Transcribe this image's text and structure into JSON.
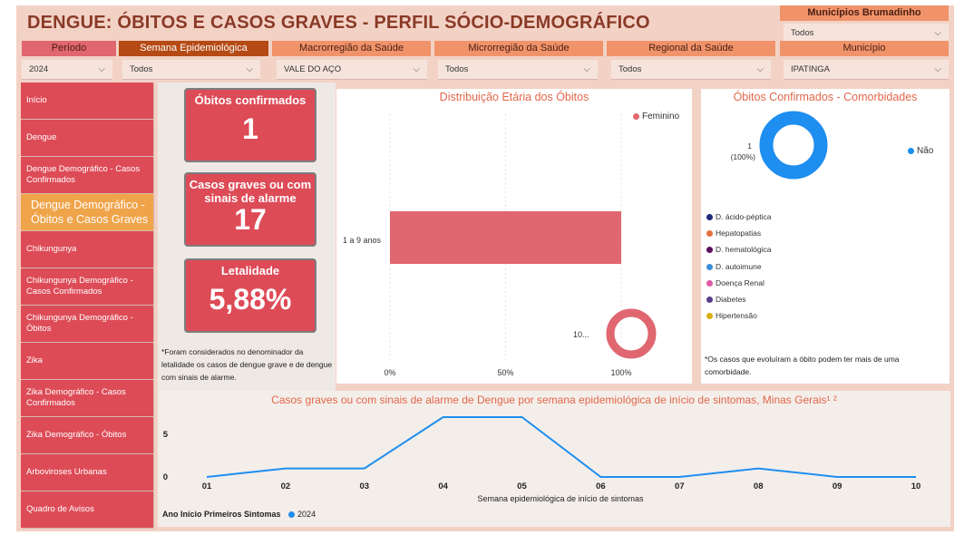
{
  "header": {
    "title": "DENGUE: ÓBITOS E CASOS GRAVES - PERFIL SÓCIO-DEMOGRÁFICO"
  },
  "filters": {
    "municipios_brumadinho": {
      "label": "Municípios Brumadinho",
      "value": "Todos"
    },
    "periodo": {
      "label": "Período",
      "value": "2024"
    },
    "semana": {
      "label": "Semana Epidemiológica",
      "value": "Todos"
    },
    "macro": {
      "label": "Macrorregião da Saúde",
      "value": "VALE DO AÇO"
    },
    "micro": {
      "label": "Microrregião da Saúde",
      "value": "Todos"
    },
    "regional": {
      "label": "Regional da Saúde",
      "value": "Todos"
    },
    "municipio": {
      "label": "Município",
      "value": "IPATINGA"
    }
  },
  "sidebar": {
    "items": [
      {
        "label": "Início"
      },
      {
        "label": "Dengue"
      },
      {
        "label": "Dengue Demográfico - Casos Confirmados"
      },
      {
        "label": "Dengue Demográfico - Óbitos e Casos Graves",
        "active": true
      },
      {
        "label": "Chikungunya"
      },
      {
        "label": "Chikungunya Demográfico - Casos Confirmados"
      },
      {
        "label": "Chikungunya Demográfico - Óbitos"
      },
      {
        "label": "Zika"
      },
      {
        "label": "Zika Demográfico - Casos Confirmados"
      },
      {
        "label": "Zika Demográfico - Óbitos"
      },
      {
        "label": "Arboviroses Urbanas"
      },
      {
        "label": "Quadro de Avisos"
      }
    ]
  },
  "kpis": {
    "obitos": {
      "label": "Óbitos confirmados",
      "value": "1"
    },
    "graves": {
      "label": "Casos graves ou com sinais de alarme",
      "value": "17"
    },
    "letalidade": {
      "label": "Letalidade",
      "value": "5,88%"
    },
    "note": "*Foram considerados no denominador da letalidade os casos de dengue grave e de dengue com sinais de alarme."
  },
  "age_chart": {
    "title": "Distribuição Etária dos Óbitos",
    "legend": "Feminino",
    "category": "1 a 9 anos",
    "x_ticks": [
      "0%",
      "50%",
      "100%"
    ],
    "donut_label": "10..."
  },
  "comorb": {
    "title": "Óbitos Confirmados - Comorbidades",
    "donut_label": "1",
    "donut_pct": "(100%)",
    "legend_nao": "Não",
    "items": [
      {
        "label": "D. ácido-péptica",
        "color": "#1f2a7a"
      },
      {
        "label": "Hepatopatias",
        "color": "#e2703a"
      },
      {
        "label": "D. hematológica",
        "color": "#5a1160"
      },
      {
        "label": "D. autoimune",
        "color": "#3a8ed8"
      },
      {
        "label": "Doença Renal",
        "color": "#e05aa8"
      },
      {
        "label": "Diabetes",
        "color": "#5a3a8a"
      },
      {
        "label": "Hipertensão",
        "color": "#d8b010"
      }
    ],
    "note": "*Os casos que evoluíram a óbito podem ter mais de uma comorbidade."
  },
  "weekly": {
    "title": "Casos graves ou com sinais de alarme de Dengue por semana epidemiológica de início de sintomas, Minas Gerais¹ ²",
    "xlabel": "Semana epidemiológica de início de sintomas",
    "y_ticks": [
      "0",
      "5"
    ],
    "legend_title": "Ano Início Primeiros Sintomas",
    "legend_series": "2024"
  },
  "chart_data": [
    {
      "type": "bar",
      "title": "Distribuição Etária dos Óbitos",
      "categories": [
        "1 a 9 anos"
      ],
      "series": [
        {
          "name": "Feminino",
          "values": [
            100
          ]
        }
      ],
      "xlim": [
        0,
        100
      ],
      "x_unit": "%",
      "color": "#e06670"
    },
    {
      "type": "pie",
      "title": "Óbitos Confirmados - Comorbidades",
      "categories": [
        "Não"
      ],
      "values": [
        1
      ],
      "percent": [
        100
      ],
      "color": "#1e8ef0"
    },
    {
      "type": "line",
      "title": "Casos graves ou com sinais de alarme de Dengue por semana epidemiológica de início de sintomas, Minas Gerais¹ ²",
      "xlabel": "Semana epidemiológica de início de sintomas",
      "x": [
        "01",
        "02",
        "03",
        "04",
        "05",
        "06",
        "07",
        "08",
        "09",
        "10"
      ],
      "series": [
        {
          "name": "2024",
          "values": [
            0,
            1,
            1,
            7,
            7,
            0,
            0,
            1,
            0,
            0
          ]
        }
      ],
      "ylim": [
        0,
        7.5
      ],
      "color": "#1e8ef0"
    }
  ]
}
